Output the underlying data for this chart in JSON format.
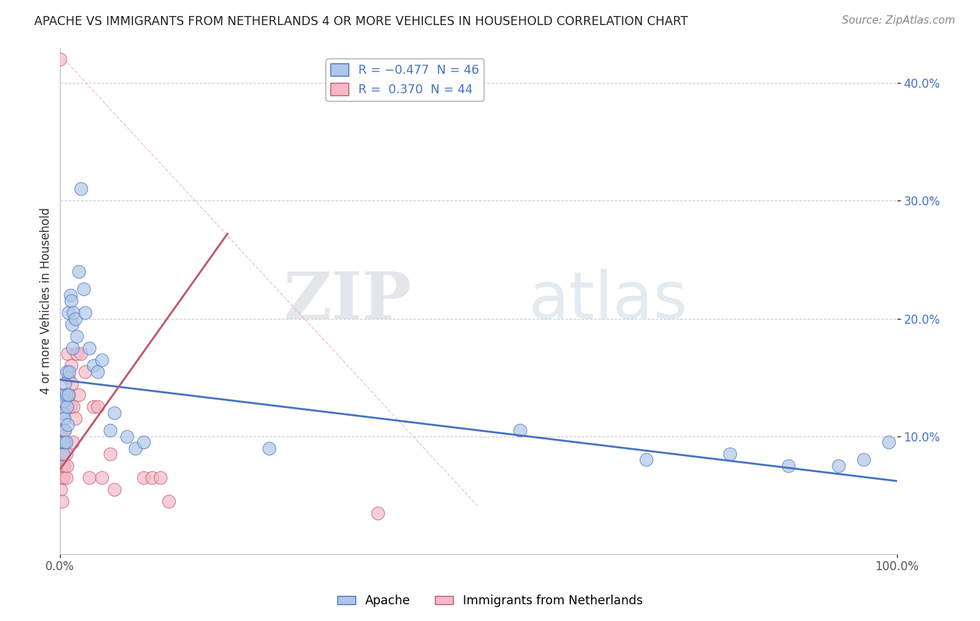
{
  "title": "APACHE VS IMMIGRANTS FROM NETHERLANDS 4 OR MORE VEHICLES IN HOUSEHOLD CORRELATION CHART",
  "source": "Source: ZipAtlas.com",
  "ylabel": "4 or more Vehicles in Household",
  "xlim": [
    0.0,
    1.0
  ],
  "ylim": [
    0.0,
    0.43
  ],
  "ytick_positions": [
    0.1,
    0.2,
    0.3,
    0.4
  ],
  "apache_color": "#aec6e8",
  "netherlands_color": "#f4b8c8",
  "apache_line_color": "#4472c4",
  "netherlands_line_color": "#c0546a",
  "watermark_zip": "ZIP",
  "watermark_atlas": "atlas",
  "apache_x": [
    0.002,
    0.003,
    0.003,
    0.004,
    0.004,
    0.005,
    0.005,
    0.005,
    0.006,
    0.006,
    0.007,
    0.007,
    0.008,
    0.008,
    0.009,
    0.01,
    0.01,
    0.011,
    0.012,
    0.013,
    0.014,
    0.015,
    0.016,
    0.018,
    0.02,
    0.022,
    0.025,
    0.028,
    0.03,
    0.035,
    0.04,
    0.045,
    0.05,
    0.06,
    0.065,
    0.08,
    0.09,
    0.1,
    0.25,
    0.55,
    0.7,
    0.8,
    0.87,
    0.93,
    0.96,
    0.99
  ],
  "apache_y": [
    0.13,
    0.12,
    0.095,
    0.135,
    0.085,
    0.13,
    0.115,
    0.095,
    0.105,
    0.145,
    0.135,
    0.095,
    0.155,
    0.125,
    0.11,
    0.205,
    0.135,
    0.155,
    0.22,
    0.215,
    0.195,
    0.175,
    0.205,
    0.2,
    0.185,
    0.24,
    0.31,
    0.225,
    0.205,
    0.175,
    0.16,
    0.155,
    0.165,
    0.105,
    0.12,
    0.1,
    0.09,
    0.095,
    0.09,
    0.105,
    0.08,
    0.085,
    0.075,
    0.075,
    0.08,
    0.095
  ],
  "netherlands_x": [
    0.0,
    0.001,
    0.001,
    0.001,
    0.001,
    0.002,
    0.002,
    0.002,
    0.003,
    0.003,
    0.003,
    0.004,
    0.004,
    0.005,
    0.005,
    0.006,
    0.007,
    0.007,
    0.008,
    0.009,
    0.01,
    0.011,
    0.012,
    0.013,
    0.014,
    0.015,
    0.016,
    0.018,
    0.02,
    0.022,
    0.025,
    0.03,
    0.035,
    0.04,
    0.045,
    0.05,
    0.06,
    0.065,
    0.1,
    0.11,
    0.12,
    0.13,
    0.38,
    0.0
  ],
  "netherlands_y": [
    0.08,
    0.1,
    0.075,
    0.065,
    0.055,
    0.085,
    0.065,
    0.045,
    0.125,
    0.095,
    0.075,
    0.085,
    0.065,
    0.105,
    0.075,
    0.095,
    0.085,
    0.065,
    0.075,
    0.17,
    0.15,
    0.135,
    0.125,
    0.16,
    0.145,
    0.095,
    0.125,
    0.115,
    0.17,
    0.135,
    0.17,
    0.155,
    0.065,
    0.125,
    0.125,
    0.065,
    0.085,
    0.055,
    0.065,
    0.065,
    0.065,
    0.045,
    0.035,
    0.42
  ],
  "neth_line_x0": 0.0,
  "neth_line_x1": 0.2,
  "neth_line_y0": 0.072,
  "neth_line_y1": 0.272,
  "apache_line_x0": 0.0,
  "apache_line_x1": 1.0,
  "apache_line_y0": 0.148,
  "apache_line_y1": 0.062,
  "ref_line_x0": 0.005,
  "ref_line_y0": 0.42,
  "ref_line_x1": 0.5,
  "ref_line_y1": 0.04
}
